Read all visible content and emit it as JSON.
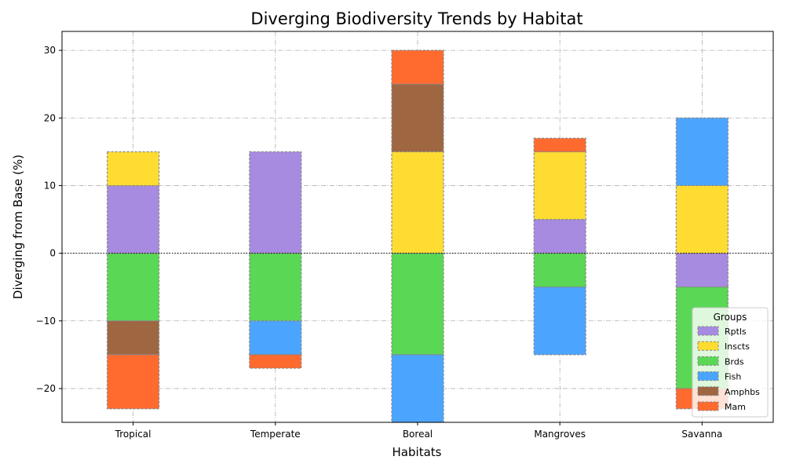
{
  "chart_data": {
    "type": "bar",
    "stacked": true,
    "diverging": true,
    "title": "Diverging Biodiversity Trends by Habitat",
    "xlabel": "Habitats",
    "ylabel": "Diverging from Base (%)",
    "categories": [
      "Tropical",
      "Temperate",
      "Boreal",
      "Mangroves",
      "Savanna"
    ],
    "ylim": [
      -25,
      32.8
    ],
    "yticks": [
      -20,
      -10,
      0,
      10,
      20,
      30
    ],
    "ytick_labels": [
      "−20",
      "−10",
      "0",
      "10",
      "20",
      "30"
    ],
    "grid": true,
    "legend": {
      "title": "Groups",
      "placement": "lower-right"
    },
    "series": [
      {
        "name": "Rptls",
        "color": "#a78be0",
        "values": [
          10,
          15,
          0,
          5,
          -5
        ]
      },
      {
        "name": "Inscts",
        "color": "#ffdc32",
        "values": [
          5,
          0,
          15,
          10,
          10
        ]
      },
      {
        "name": "Brds",
        "color": "#5ad755",
        "values": [
          -10,
          -10,
          -15,
          -5,
          -15
        ]
      },
      {
        "name": "Fish",
        "color": "#4ba5ff",
        "values": [
          0,
          -5,
          -10,
          -10,
          10
        ]
      },
      {
        "name": "Amphbs",
        "color": "#9e6641",
        "values": [
          -5,
          0,
          10,
          0,
          0
        ]
      },
      {
        "name": "Mam",
        "color": "#ff6a2f",
        "values": [
          -8,
          -2,
          5,
          2,
          -3
        ]
      }
    ]
  }
}
